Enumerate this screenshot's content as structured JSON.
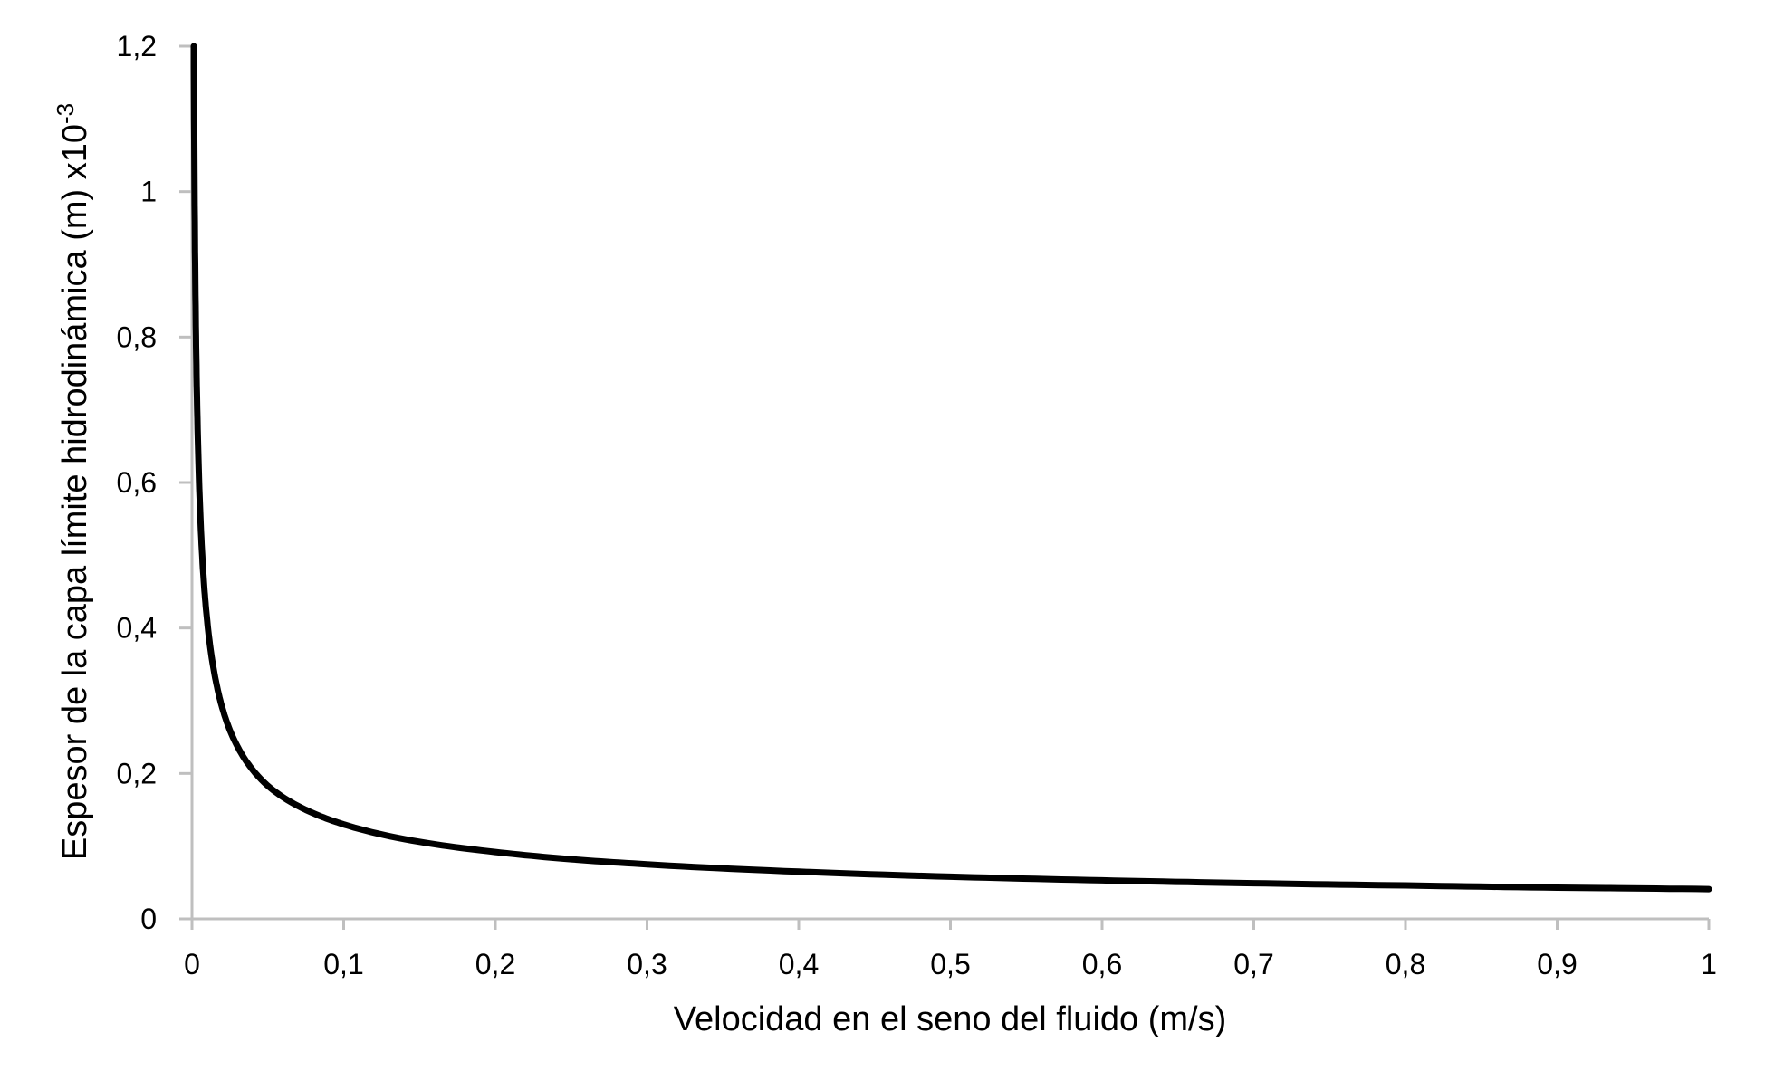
{
  "chart_data": {
    "type": "line",
    "title": "",
    "xlabel": "Velocidad en el seno del fluido (m/s)",
    "ylabel": "Espesor de la capa límite hidrodinámica (m) x10",
    "ylabel_superscript": "-3",
    "xlim": [
      0,
      1
    ],
    "ylim": [
      0,
      1.2
    ],
    "x_ticks": [
      0,
      0.1,
      0.2,
      0.3,
      0.4,
      0.5,
      0.6,
      0.7,
      0.8,
      0.9,
      1
    ],
    "x_tick_labels": [
      "0",
      "0,1",
      "0,2",
      "0,3",
      "0,4",
      "0,5",
      "0,6",
      "0,7",
      "0,8",
      "0,9",
      "1"
    ],
    "y_ticks": [
      0,
      0.2,
      0.4,
      0.6,
      0.8,
      1,
      1.2
    ],
    "y_tick_labels": [
      "0",
      "0,2",
      "0,4",
      "0,6",
      "0,8",
      "1",
      "1,2"
    ],
    "grid": false,
    "legend": null,
    "line_color": "#000000",
    "axis_color": "#BFBFBF",
    "series": [
      {
        "name": "Espesor de la capa límite",
        "x": [
          0.00117,
          0.002,
          0.003,
          0.005,
          0.0075,
          0.01,
          0.015,
          0.02,
          0.03,
          0.04,
          0.05,
          0.075,
          0.1,
          0.15,
          0.2,
          0.25,
          0.3,
          0.4,
          0.5,
          0.6,
          0.7,
          0.8,
          0.9,
          1.0
        ],
        "values": [
          1.2,
          0.917,
          0.749,
          0.58,
          0.473,
          0.41,
          0.335,
          0.29,
          0.237,
          0.205,
          0.183,
          0.15,
          0.13,
          0.106,
          0.092,
          0.082,
          0.075,
          0.065,
          0.058,
          0.053,
          0.049,
          0.046,
          0.043,
          0.041
        ]
      }
    ]
  }
}
